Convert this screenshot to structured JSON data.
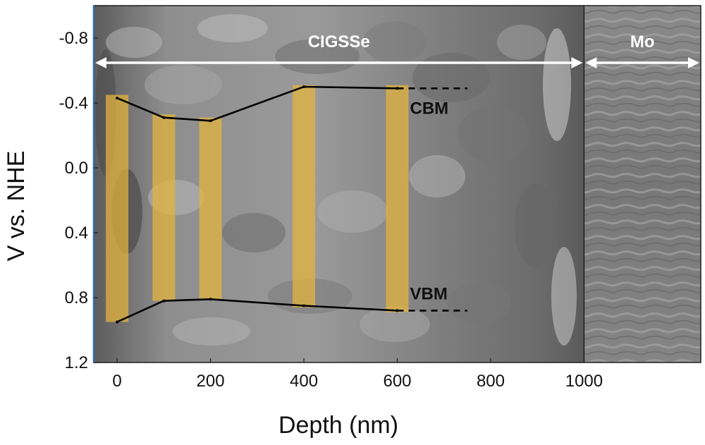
{
  "chart_data": {
    "type": "line",
    "title": "",
    "xlabel": "Depth (nm)",
    "ylabel": "V vs. NHE",
    "xlim": [
      -50,
      1250
    ],
    "ylim": [
      -1.0,
      1.2
    ],
    "y_inverted": true,
    "x_ticks": [
      "0",
      "200",
      "400",
      "600",
      "800",
      "1000"
    ],
    "y_ticks": [
      "-0.8",
      "-0.4",
      "0.0",
      "0.4",
      "0.8",
      "1.2"
    ],
    "grid": false,
    "background": "SEM cross-section image",
    "regions": [
      {
        "label": "CIGSSe",
        "x_range": [
          -50,
          1000
        ]
      },
      {
        "label": "Mo",
        "x_range": [
          1000,
          1250
        ]
      }
    ],
    "series": [
      {
        "name": "CBM",
        "color": "#000000",
        "x": [
          0,
          100,
          200,
          400,
          600
        ],
        "values": [
          -0.43,
          -0.31,
          -0.29,
          -0.5,
          -0.49
        ],
        "extension_x": 750
      },
      {
        "name": "VBM",
        "color": "#000000",
        "x": [
          0,
          100,
          200,
          400,
          600
        ],
        "values": [
          0.95,
          0.82,
          0.81,
          0.85,
          0.88
        ],
        "extension_x": 750
      }
    ],
    "highlight_bands": [
      {
        "x_center": 0,
        "y_range": [
          -0.45,
          0.95
        ]
      },
      {
        "x_center": 100,
        "y_range": [
          -0.33,
          0.82
        ]
      },
      {
        "x_center": 200,
        "y_range": [
          -0.31,
          0.81
        ]
      },
      {
        "x_center": 400,
        "y_range": [
          -0.51,
          0.86
        ]
      },
      {
        "x_center": 600,
        "y_range": [
          -0.51,
          0.89
        ]
      }
    ],
    "colors": {
      "band_fill": "#e6b63c",
      "arrow": "#ffffff",
      "line": "#000000"
    }
  }
}
